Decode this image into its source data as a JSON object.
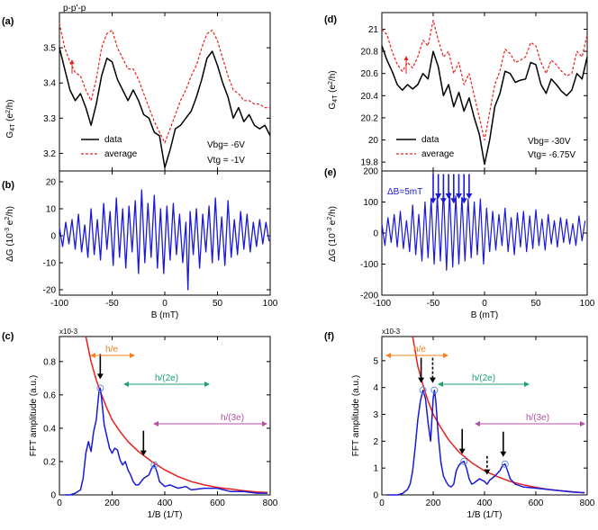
{
  "figure": {
    "panel_labels": [
      "(a)",
      "(b)",
      "(c)",
      "(d)",
      "(e)",
      "(f)"
    ],
    "title_left": "p-p'-p",
    "colors": {
      "data": "#000000",
      "average": "#e8201c",
      "dG": "#1a1ad6",
      "fft": "#1a1ad6",
      "envelope": "#e8201c",
      "he": "#f08020",
      "h2e": "#20a070",
      "h3e": "#b050a0",
      "circle": "#6090e0"
    }
  },
  "chart_data": [
    {
      "id": "a",
      "type": "line",
      "xlim": [
        -100,
        100
      ],
      "ylim": [
        3.15,
        3.6
      ],
      "xticks": [
        -100,
        -50,
        0,
        50,
        100
      ],
      "yticks": [
        3.2,
        3.3,
        3.4,
        3.5
      ],
      "ylabel": "G4T (e2/h)",
      "legend": [
        "data",
        "average"
      ],
      "annotations": [
        "Vbg= -6V",
        "Vtg = -1V"
      ],
      "series": [
        {
          "name": "data",
          "x": [
            -100,
            -95,
            -90,
            -85,
            -80,
            -75,
            -70,
            -65,
            -60,
            -55,
            -50,
            -45,
            -40,
            -35,
            -30,
            -25,
            -20,
            -15,
            -10,
            -5,
            0,
            5,
            10,
            15,
            20,
            25,
            30,
            35,
            40,
            45,
            50,
            55,
            60,
            65,
            70,
            75,
            80,
            85,
            90,
            95,
            100
          ],
          "y": [
            3.5,
            3.44,
            3.38,
            3.35,
            3.37,
            3.33,
            3.28,
            3.34,
            3.42,
            3.47,
            3.46,
            3.41,
            3.38,
            3.35,
            3.38,
            3.35,
            3.31,
            3.3,
            3.26,
            3.25,
            3.16,
            3.21,
            3.27,
            3.28,
            3.3,
            3.32,
            3.36,
            3.41,
            3.47,
            3.49,
            3.45,
            3.4,
            3.36,
            3.3,
            3.33,
            3.29,
            3.31,
            3.28,
            3.27,
            3.28,
            3.25
          ]
        },
        {
          "name": "average",
          "x": [
            -100,
            -95,
            -90,
            -85,
            -80,
            -75,
            -70,
            -65,
            -60,
            -55,
            -50,
            -45,
            -40,
            -35,
            -30,
            -25,
            -20,
            -15,
            -10,
            -5,
            0,
            5,
            10,
            15,
            20,
            25,
            30,
            35,
            40,
            45,
            50,
            55,
            60,
            65,
            70,
            75,
            80,
            85,
            90,
            95,
            100
          ],
          "y": [
            3.57,
            3.5,
            3.46,
            3.43,
            3.42,
            3.38,
            3.35,
            3.41,
            3.5,
            3.54,
            3.55,
            3.5,
            3.47,
            3.44,
            3.44,
            3.41,
            3.37,
            3.33,
            3.29,
            3.26,
            3.23,
            3.27,
            3.31,
            3.35,
            3.38,
            3.42,
            3.45,
            3.5,
            3.54,
            3.55,
            3.52,
            3.47,
            3.42,
            3.38,
            3.37,
            3.35,
            3.35,
            3.34,
            3.34,
            3.33,
            3.33
          ]
        }
      ]
    },
    {
      "id": "b",
      "type": "line",
      "xlim": [
        -100,
        100
      ],
      "ylim": [
        -22,
        24
      ],
      "xticks": [
        -100,
        -50,
        0,
        50,
        100
      ],
      "yticks": [
        -20,
        -10,
        0,
        10,
        20
      ],
      "xlabel": "B (mT)",
      "ylabel": "ΔG (10-3 e2/h)",
      "series": [
        {
          "name": "dG",
          "x": [
            -100,
            -97,
            -94,
            -91,
            -88,
            -85,
            -82,
            -79,
            -76,
            -73,
            -70,
            -67,
            -64,
            -61,
            -58,
            -55,
            -52,
            -49,
            -46,
            -43,
            -40,
            -37,
            -34,
            -31,
            -28,
            -25,
            -22,
            -19,
            -16,
            -13,
            -10,
            -7,
            -4,
            -1,
            2,
            5,
            8,
            11,
            14,
            17,
            20,
            22,
            24,
            27,
            30,
            33,
            36,
            39,
            42,
            45,
            48,
            51,
            54,
            57,
            60,
            63,
            66,
            69,
            72,
            75,
            78,
            81,
            84,
            87,
            90,
            93,
            96,
            99
          ],
          "y": [
            3,
            -4,
            5,
            -3,
            6,
            -5,
            8,
            -6,
            4,
            -8,
            10,
            -7,
            6,
            -9,
            12,
            -5,
            9,
            -11,
            14,
            -8,
            10,
            -12,
            11,
            -6,
            13,
            -14,
            17,
            -10,
            12,
            -8,
            15,
            -12,
            10,
            -14,
            11,
            -9,
            12,
            -7,
            8,
            -10,
            5,
            -20,
            9,
            -7,
            10,
            -12,
            8,
            -6,
            11,
            -10,
            14,
            -9,
            7,
            -11,
            13,
            -8,
            6,
            -7,
            9,
            -5,
            8,
            -6,
            5,
            -4,
            6,
            -3,
            5,
            -2
          ]
        }
      ]
    },
    {
      "id": "c",
      "type": "line",
      "xlim": [
        0,
        800
      ],
      "ylim": [
        0,
        0.95
      ],
      "xticks": [
        0,
        200,
        400,
        600,
        800
      ],
      "yticks": [
        0,
        0.2,
        0.4,
        0.6,
        0.8
      ],
      "xlabel": "1/B (1/T)",
      "ylabel": "FFT amplitude (a.u.)",
      "scale_label": "x10-3",
      "range_labels": [
        "h/e",
        "h/(2e)",
        "h/(3e)"
      ],
      "series": [
        {
          "name": "fft",
          "x": [
            20,
            40,
            60,
            80,
            90,
            100,
            110,
            120,
            130,
            140,
            150,
            155,
            160,
            170,
            180,
            190,
            200,
            210,
            220,
            230,
            240,
            250,
            260,
            270,
            280,
            290,
            300,
            320,
            340,
            350,
            360,
            370,
            380,
            400,
            420,
            450,
            480,
            500,
            550,
            600,
            650,
            700,
            750,
            790
          ],
          "y": [
            0.0,
            0.0,
            0.01,
            0.03,
            0.1,
            0.25,
            0.32,
            0.26,
            0.38,
            0.45,
            0.62,
            0.64,
            0.58,
            0.42,
            0.35,
            0.28,
            0.25,
            0.28,
            0.27,
            0.21,
            0.18,
            0.2,
            0.15,
            0.12,
            0.08,
            0.06,
            0.06,
            0.1,
            0.12,
            0.16,
            0.18,
            0.14,
            0.08,
            0.05,
            0.06,
            0.04,
            0.05,
            0.03,
            0.04,
            0.04,
            0.02,
            0.02,
            0.01,
            0.01
          ]
        },
        {
          "name": "envelope",
          "x": [
            100,
            120,
            140,
            160,
            180,
            200,
            230,
            260,
            300,
            350,
            400,
            450,
            500,
            550,
            600,
            650,
            700,
            750,
            790
          ],
          "y": [
            0.95,
            0.8,
            0.69,
            0.6,
            0.52,
            0.45,
            0.38,
            0.32,
            0.26,
            0.2,
            0.15,
            0.11,
            0.08,
            0.06,
            0.045,
            0.035,
            0.025,
            0.018,
            0.014
          ]
        }
      ],
      "markers": [
        {
          "x": 155,
          "y": 0.64
        },
        {
          "x": 360,
          "y": 0.18
        }
      ]
    },
    {
      "id": "d",
      "type": "line",
      "xlim": [
        -100,
        100
      ],
      "ylim": [
        19.72,
        21.15
      ],
      "xticks": [
        -100,
        -50,
        0,
        50,
        100
      ],
      "yticks": [
        19.8,
        20,
        20.2,
        20.4,
        20.6,
        20.8,
        21
      ],
      "ylabel": "G4T (e2/h)",
      "legend": [
        "data",
        "average"
      ],
      "annotations": [
        "Vbg= -30V",
        "Vtg= -6.75V"
      ],
      "series": [
        {
          "name": "data",
          "x": [
            -100,
            -95,
            -90,
            -85,
            -80,
            -75,
            -70,
            -65,
            -60,
            -55,
            -50,
            -45,
            -40,
            -35,
            -30,
            -25,
            -20,
            -15,
            -10,
            -5,
            0,
            5,
            10,
            15,
            20,
            25,
            30,
            35,
            40,
            45,
            50,
            55,
            60,
            65,
            70,
            75,
            80,
            85,
            90,
            95,
            100
          ],
          "y": [
            20.85,
            20.72,
            20.62,
            20.5,
            20.45,
            20.5,
            20.46,
            20.5,
            20.6,
            20.55,
            20.8,
            20.66,
            20.4,
            20.5,
            20.3,
            20.43,
            20.26,
            20.38,
            20.2,
            20.05,
            19.78,
            20.0,
            20.3,
            20.42,
            20.62,
            20.6,
            20.52,
            20.54,
            20.55,
            20.7,
            20.68,
            20.5,
            20.42,
            20.55,
            20.5,
            20.44,
            20.4,
            20.45,
            20.6,
            20.55,
            20.75
          ]
        },
        {
          "name": "average",
          "x": [
            -100,
            -95,
            -90,
            -85,
            -80,
            -75,
            -70,
            -65,
            -60,
            -55,
            -50,
            -45,
            -40,
            -35,
            -30,
            -25,
            -20,
            -15,
            -10,
            -5,
            0,
            5,
            10,
            15,
            20,
            25,
            30,
            35,
            40,
            45,
            50,
            55,
            60,
            65,
            70,
            75,
            80,
            85,
            90,
            95,
            100
          ],
          "y": [
            21.0,
            20.95,
            20.8,
            20.68,
            20.62,
            20.7,
            20.65,
            20.75,
            20.9,
            20.85,
            21.08,
            20.9,
            20.75,
            20.8,
            20.6,
            20.7,
            20.5,
            20.6,
            20.4,
            20.2,
            20.0,
            20.25,
            20.5,
            20.62,
            20.82,
            20.78,
            20.7,
            20.72,
            20.75,
            20.88,
            20.85,
            20.7,
            20.6,
            20.72,
            20.68,
            20.62,
            20.58,
            20.6,
            20.8,
            20.75,
            20.95
          ]
        }
      ]
    },
    {
      "id": "e",
      "type": "line",
      "xlim": [
        -100,
        100
      ],
      "ylim": [
        -200,
        200
      ],
      "xticks": [
        -100,
        -50,
        0,
        50,
        100
      ],
      "yticks": [
        -200,
        -100,
        0,
        100,
        200
      ],
      "xlabel": "B (mT)",
      "ylabel": "ΔG (10-3 e2/h)",
      "annotations": [
        "ΔB=5mT"
      ],
      "arrow_x": [
        -50,
        -45,
        -40,
        -35,
        -30,
        -25,
        -20,
        -15
      ],
      "series": [
        {
          "name": "dG",
          "x": [
            -100,
            -97,
            -94,
            -91,
            -88,
            -85,
            -82,
            -79,
            -76,
            -73,
            -70,
            -67,
            -64,
            -61,
            -58,
            -55,
            -52,
            -49,
            -46,
            -43,
            -40,
            -37,
            -34,
            -31,
            -28,
            -25,
            -22,
            -19,
            -16,
            -13,
            -10,
            -7,
            -4,
            -1,
            2,
            5,
            8,
            11,
            14,
            17,
            20,
            23,
            26,
            29,
            32,
            35,
            38,
            41,
            44,
            47,
            50,
            53,
            56,
            59,
            62,
            65,
            68,
            71,
            74,
            77,
            80,
            83,
            86,
            89,
            92,
            95,
            98
          ],
          "y": [
            30,
            -40,
            50,
            -30,
            60,
            -45,
            70,
            -50,
            40,
            -60,
            90,
            -70,
            60,
            -90,
            100,
            -80,
            110,
            -100,
            120,
            -90,
            140,
            -120,
            130,
            -110,
            120,
            -100,
            115,
            -90,
            110,
            -80,
            100,
            -70,
            110,
            -100,
            80,
            -60,
            70,
            -55,
            60,
            -40,
            80,
            -60,
            50,
            -70,
            65,
            -45,
            70,
            -60,
            55,
            -50,
            75,
            -40,
            45,
            -55,
            60,
            -35,
            40,
            -45,
            50,
            -30,
            45,
            -35,
            30,
            -40,
            55,
            -25,
            40
          ]
        }
      ]
    },
    {
      "id": "f",
      "type": "line",
      "xlim": [
        0,
        800
      ],
      "ylim": [
        0,
        5.9
      ],
      "xticks": [
        0,
        200,
        400,
        600,
        800
      ],
      "yticks": [
        0,
        1,
        2,
        3,
        4,
        5
      ],
      "xlabel": "1/B (1/T)",
      "ylabel": "FFT amplitude (a.u.)",
      "scale_label": "x10-3",
      "range_labels": [
        "h/e",
        "h/(2e)",
        "h/(3e)"
      ],
      "series": [
        {
          "name": "fft",
          "x": [
            20,
            40,
            60,
            80,
            100,
            110,
            120,
            130,
            140,
            150,
            160,
            170,
            180,
            190,
            200,
            205,
            210,
            220,
            230,
            240,
            250,
            260,
            270,
            280,
            290,
            300,
            310,
            320,
            330,
            340,
            350,
            360,
            380,
            400,
            410,
            420,
            440,
            460,
            470,
            480,
            490,
            500,
            520,
            550,
            600,
            650,
            700,
            750,
            790
          ],
          "y": [
            0.0,
            0.0,
            0.0,
            0.05,
            0.2,
            0.4,
            0.9,
            1.8,
            2.8,
            3.5,
            3.9,
            3.6,
            2.7,
            2.0,
            3.6,
            3.9,
            3.5,
            2.2,
            1.2,
            0.7,
            0.5,
            0.35,
            0.3,
            0.4,
            0.9,
            1.1,
            1.2,
            1.25,
            1.0,
            0.6,
            0.4,
            0.45,
            0.6,
            0.5,
            0.4,
            0.55,
            0.7,
            0.9,
            1.1,
            1.15,
            0.9,
            0.6,
            0.4,
            0.3,
            0.25,
            0.2,
            0.15,
            0.1,
            0.08
          ]
        },
        {
          "name": "envelope",
          "x": [
            120,
            140,
            160,
            180,
            200,
            230,
            260,
            300,
            350,
            400,
            450,
            500,
            550,
            600,
            650,
            700,
            750,
            790
          ],
          "y": [
            5.9,
            4.8,
            4.1,
            3.5,
            3.0,
            2.5,
            2.05,
            1.6,
            1.2,
            0.9,
            0.68,
            0.5,
            0.38,
            0.28,
            0.2,
            0.15,
            0.11,
            0.08
          ]
        }
      ],
      "markers": [
        {
          "x": 160,
          "y": 3.9
        },
        {
          "x": 205,
          "y": 3.9
        },
        {
          "x": 320,
          "y": 1.25
        },
        {
          "x": 480,
          "y": 1.15
        }
      ]
    }
  ]
}
